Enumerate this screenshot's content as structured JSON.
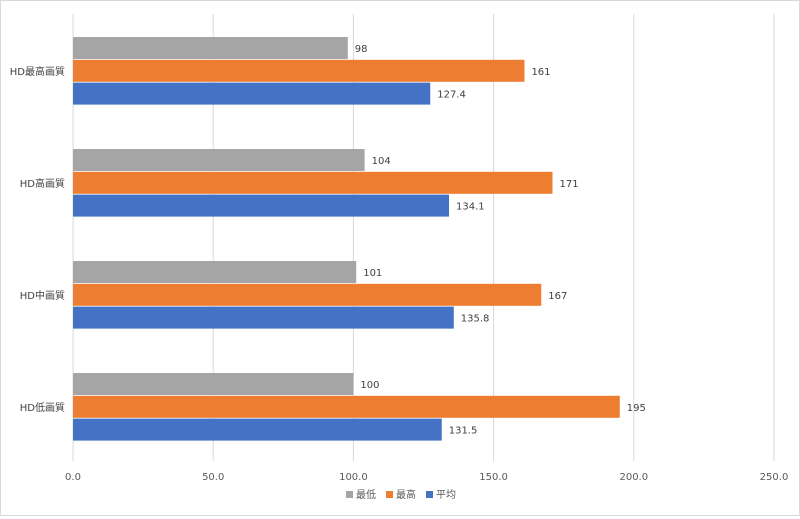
{
  "chart_data": {
    "type": "bar",
    "orientation": "horizontal",
    "categories": [
      "HD最高画質",
      "HD高画質",
      "HD中画質",
      "HD低画質"
    ],
    "series": [
      {
        "name": "最低",
        "color": "#a5a5a5",
        "values": [
          98,
          104,
          101,
          100
        ],
        "labels": [
          "98",
          "104",
          "101",
          "100"
        ]
      },
      {
        "name": "最高",
        "color": "#ed7d31",
        "values": [
          161,
          171,
          167,
          195
        ],
        "labels": [
          "161",
          "171",
          "167",
          "195"
        ]
      },
      {
        "name": "平均",
        "color": "#4472c4",
        "values": [
          127.4,
          134.1,
          135.8,
          131.5
        ],
        "labels": [
          "127.4",
          "134.1",
          "135.8",
          "131.5"
        ]
      }
    ],
    "xlim": [
      0,
      250
    ],
    "ticks": [
      0,
      50,
      100,
      150,
      200,
      250
    ],
    "tick_labels": [
      "0.0",
      "50.0",
      "100.0",
      "150.0",
      "200.0",
      "250.0"
    ],
    "title": "",
    "xlabel": "",
    "ylabel": "",
    "grid": true,
    "legend_position": "bottom"
  }
}
